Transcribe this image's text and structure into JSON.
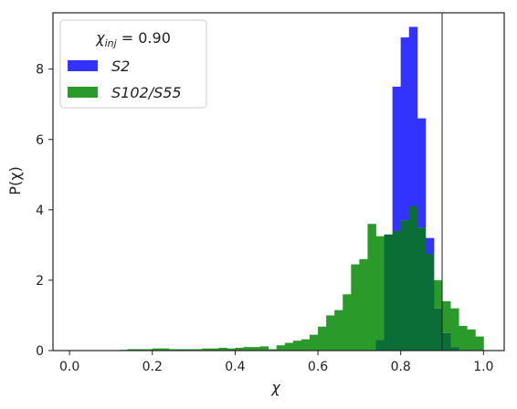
{
  "chart_data": {
    "type": "histogram",
    "title": "",
    "xlabel": "χ",
    "ylabel": "P(χ)",
    "xlim": [
      -0.04,
      1.05
    ],
    "ylim": [
      0,
      9.6
    ],
    "x_ticks": [
      0.0,
      0.2,
      0.4,
      0.6,
      0.8,
      1.0
    ],
    "x_tick_labels": [
      "0.0",
      "0.2",
      "0.4",
      "0.6",
      "0.8",
      "1.0"
    ],
    "y_ticks": [
      0,
      2,
      4,
      6,
      8
    ],
    "y_tick_labels": [
      "0",
      "2",
      "4",
      "6",
      "8"
    ],
    "reference_line_x": 0.9,
    "bin_width": 0.02,
    "legend": {
      "title": "χ_inj = 0.90",
      "title_main": "χ",
      "title_sub": "inj",
      "title_rest": " = 0.90",
      "placement": "top-left"
    },
    "series": [
      {
        "name": "S2",
        "color": "#3333ff",
        "bin_starts": [
          0.74,
          0.76,
          0.78,
          0.8,
          0.82,
          0.84,
          0.86,
          0.88,
          0.9,
          0.92
        ],
        "values": [
          0.3,
          3.3,
          7.5,
          8.9,
          9.2,
          6.6,
          3.2,
          1.2,
          0.5,
          0.1
        ]
      },
      {
        "name": "S102/S55",
        "color": "#2a9a2a",
        "bin_starts": [
          0.12,
          0.14,
          0.16,
          0.18,
          0.2,
          0.22,
          0.24,
          0.26,
          0.28,
          0.3,
          0.32,
          0.34,
          0.36,
          0.38,
          0.4,
          0.42,
          0.44,
          0.46,
          0.48,
          0.5,
          0.52,
          0.54,
          0.56,
          0.58,
          0.6,
          0.62,
          0.64,
          0.66,
          0.68,
          0.7,
          0.72,
          0.74,
          0.76,
          0.78,
          0.8,
          0.82,
          0.84,
          0.86,
          0.88,
          0.9,
          0.92,
          0.94,
          0.96,
          0.98
        ],
        "values": [
          0.02,
          0.04,
          0.04,
          0.04,
          0.06,
          0.06,
          0.04,
          0.04,
          0.04,
          0.04,
          0.06,
          0.06,
          0.08,
          0.06,
          0.08,
          0.1,
          0.1,
          0.12,
          0.04,
          0.15,
          0.22,
          0.28,
          0.32,
          0.45,
          0.68,
          1.0,
          1.15,
          1.6,
          2.45,
          2.6,
          3.6,
          3.25,
          3.3,
          3.4,
          3.7,
          4.1,
          3.5,
          2.75,
          2.0,
          1.4,
          1.2,
          0.7,
          0.6,
          0.4
        ]
      }
    ],
    "overlap_color": "#0b6e36"
  }
}
